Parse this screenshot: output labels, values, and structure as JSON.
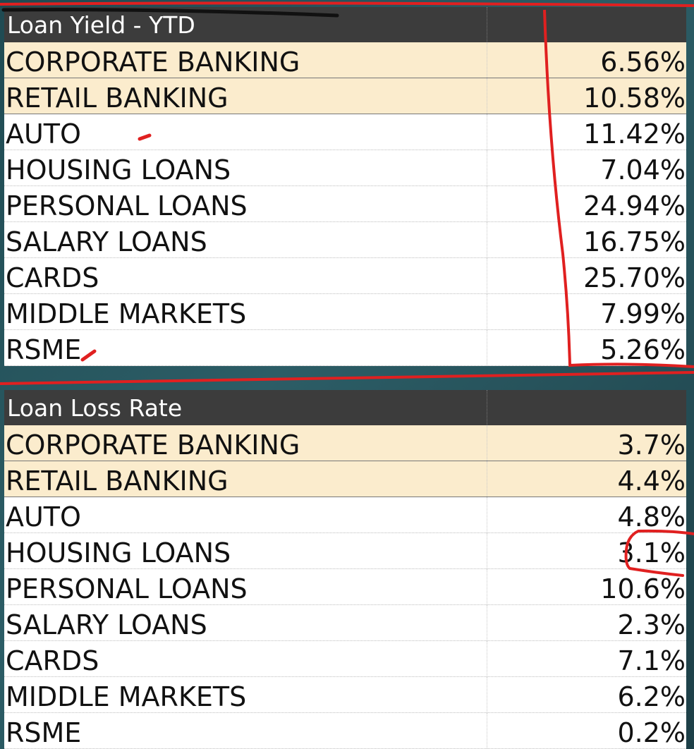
{
  "loan_yield": {
    "title": "Loan Yield - YTD",
    "rows": [
      {
        "label": "CORPORATE BANKING",
        "value": "6.56%",
        "highlight": true
      },
      {
        "label": "RETAIL BANKING",
        "value": "10.58%",
        "highlight": true
      },
      {
        "label": "AUTO",
        "value": "11.42%",
        "highlight": false
      },
      {
        "label": "HOUSING LOANS",
        "value": "7.04%",
        "highlight": false
      },
      {
        "label": "PERSONAL LOANS",
        "value": "24.94%",
        "highlight": false
      },
      {
        "label": "SALARY LOANS",
        "value": "16.75%",
        "highlight": false
      },
      {
        "label": "CARDS",
        "value": "25.70%",
        "highlight": false
      },
      {
        "label": "MIDDLE MARKETS",
        "value": "7.99%",
        "highlight": false
      },
      {
        "label": "RSME",
        "value": "5.26%",
        "highlight": false
      }
    ]
  },
  "loan_loss_rate": {
    "title": "Loan Loss Rate",
    "rows": [
      {
        "label": "CORPORATE BANKING",
        "value": "3.7%",
        "highlight": true
      },
      {
        "label": "RETAIL BANKING",
        "value": "4.4%",
        "highlight": true
      },
      {
        "label": "AUTO",
        "value": "4.8%",
        "highlight": false
      },
      {
        "label": "HOUSING LOANS",
        "value": "3.1%",
        "highlight": false
      },
      {
        "label": "PERSONAL LOANS",
        "value": "10.6%",
        "highlight": false
      },
      {
        "label": "SALARY LOANS",
        "value": "2.3%",
        "highlight": false
      },
      {
        "label": "CARDS",
        "value": "7.1%",
        "highlight": false
      },
      {
        "label": "MIDDLE MARKETS",
        "value": "6.2%",
        "highlight": false
      },
      {
        "label": "RSME",
        "value": "0.2%",
        "highlight": false
      }
    ]
  },
  "colors": {
    "header_bg": "#3c3c3c",
    "highlight_row": "#fbeccd",
    "annotation_red": "#e02020",
    "background": "#2c5d66"
  }
}
